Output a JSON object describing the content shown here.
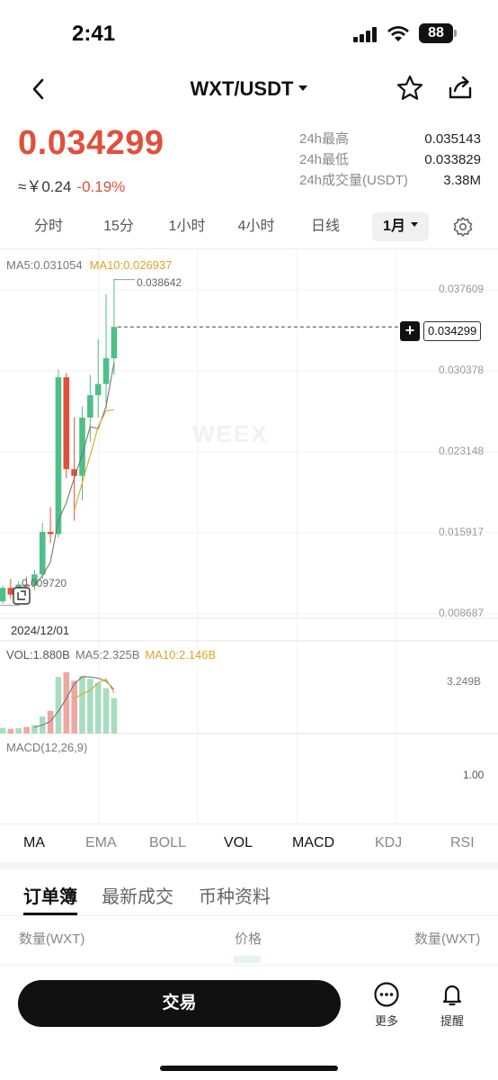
{
  "status": {
    "time": "2:41",
    "battery": "88"
  },
  "header": {
    "title": "WXT/USDT"
  },
  "price": {
    "last": "0.034299",
    "cny": "≈￥0.24",
    "change": "-0.19%"
  },
  "stats": [
    {
      "label": "24h最高",
      "value": "0.035143"
    },
    {
      "label": "24h最低",
      "value": "0.033829"
    },
    {
      "label": "24h成交量(USDT)",
      "value": "3.38M"
    }
  ],
  "timeframes": [
    "分时",
    "15分",
    "1小时",
    "4小时",
    "日线",
    "1月"
  ],
  "active_timeframe": "1月",
  "chart_legend": {
    "ma5": "MA5:0.031054",
    "ma10": "MA10:0.026937",
    "vol": "VOL:1.880B",
    "vol_ma5": "MA5:2.325B",
    "vol_ma10": "MA10:2.146B",
    "macd": "MACD(12,26,9)",
    "watermark": "WEEX",
    "date": "2024/12/01",
    "high_mark": "0.038642",
    "low_mark": "0.009720",
    "current_tag": "0.034299",
    "vol_max": "3.249B",
    "macd_value": "1.00"
  },
  "chart_data": {
    "type": "candlestick",
    "y_axis_labels": [
      "0.037609",
      "0.030378",
      "0.023148",
      "0.015917",
      "0.008687"
    ],
    "ylim": [
      0.008687,
      0.037609
    ],
    "current_price": 0.034299,
    "candles": [
      {
        "o": 0.0098,
        "h": 0.0112,
        "l": 0.0096,
        "c": 0.011,
        "v": 0.3
      },
      {
        "o": 0.011,
        "h": 0.0118,
        "l": 0.01,
        "c": 0.0104,
        "v": 0.25
      },
      {
        "o": 0.0104,
        "h": 0.0116,
        "l": 0.0099,
        "c": 0.0113,
        "v": 0.28
      },
      {
        "o": 0.0113,
        "h": 0.012,
        "l": 0.0106,
        "c": 0.0112,
        "v": 0.35
      },
      {
        "o": 0.0112,
        "h": 0.0126,
        "l": 0.0108,
        "c": 0.0122,
        "v": 0.45
      },
      {
        "o": 0.0122,
        "h": 0.0168,
        "l": 0.0118,
        "c": 0.016,
        "v": 0.9
      },
      {
        "o": 0.016,
        "h": 0.0182,
        "l": 0.015,
        "c": 0.0158,
        "v": 1.2
      },
      {
        "o": 0.0158,
        "h": 0.0305,
        "l": 0.0155,
        "c": 0.0298,
        "v": 3.0
      },
      {
        "o": 0.0298,
        "h": 0.0302,
        "l": 0.0208,
        "c": 0.0216,
        "v": 3.25
      },
      {
        "o": 0.0216,
        "h": 0.0262,
        "l": 0.017,
        "c": 0.021,
        "v": 2.8
      },
      {
        "o": 0.021,
        "h": 0.0272,
        "l": 0.0188,
        "c": 0.0262,
        "v": 3.05
      },
      {
        "o": 0.0262,
        "h": 0.03,
        "l": 0.024,
        "c": 0.0282,
        "v": 2.9
      },
      {
        "o": 0.0282,
        "h": 0.0332,
        "l": 0.0262,
        "c": 0.0292,
        "v": 2.7
      },
      {
        "o": 0.0292,
        "h": 0.0372,
        "l": 0.027,
        "c": 0.0315,
        "v": 2.4
      },
      {
        "o": 0.0315,
        "h": 0.0386,
        "l": 0.03,
        "c": 0.0343,
        "v": 1.88
      }
    ],
    "ma5": [
      null,
      null,
      null,
      null,
      0.0112,
      0.0121,
      0.0133,
      0.017,
      0.0186,
      0.0208,
      0.0229,
      0.0254,
      0.0252,
      0.0272,
      0.0311
    ],
    "ma10": [
      null,
      null,
      null,
      null,
      null,
      null,
      null,
      null,
      null,
      0.0179,
      0.0204,
      0.0228,
      0.0254,
      0.0268,
      0.0269
    ],
    "vol_ma5": [
      null,
      null,
      null,
      null,
      0.33,
      0.45,
      0.64,
      1.18,
      1.86,
      2.63,
      3.02,
      3.0,
      2.94,
      2.77,
      2.33
    ],
    "vol_ma10": [
      null,
      null,
      null,
      null,
      null,
      null,
      null,
      null,
      null,
      1.86,
      2.09,
      2.29,
      2.68,
      2.9,
      2.15
    ]
  },
  "indicator_tabs": [
    "MA",
    "EMA",
    "BOLL",
    "VOL",
    "MACD",
    "KDJ",
    "RSI"
  ],
  "section_tabs": [
    "订单簿",
    "最新成交",
    "币种资料"
  ],
  "orderbook_headers": [
    "数量(WXT)",
    "价格",
    "数量(WXT)"
  ],
  "bottom_bar": {
    "trade": "交易",
    "more": "更多",
    "alert": "提醒"
  }
}
